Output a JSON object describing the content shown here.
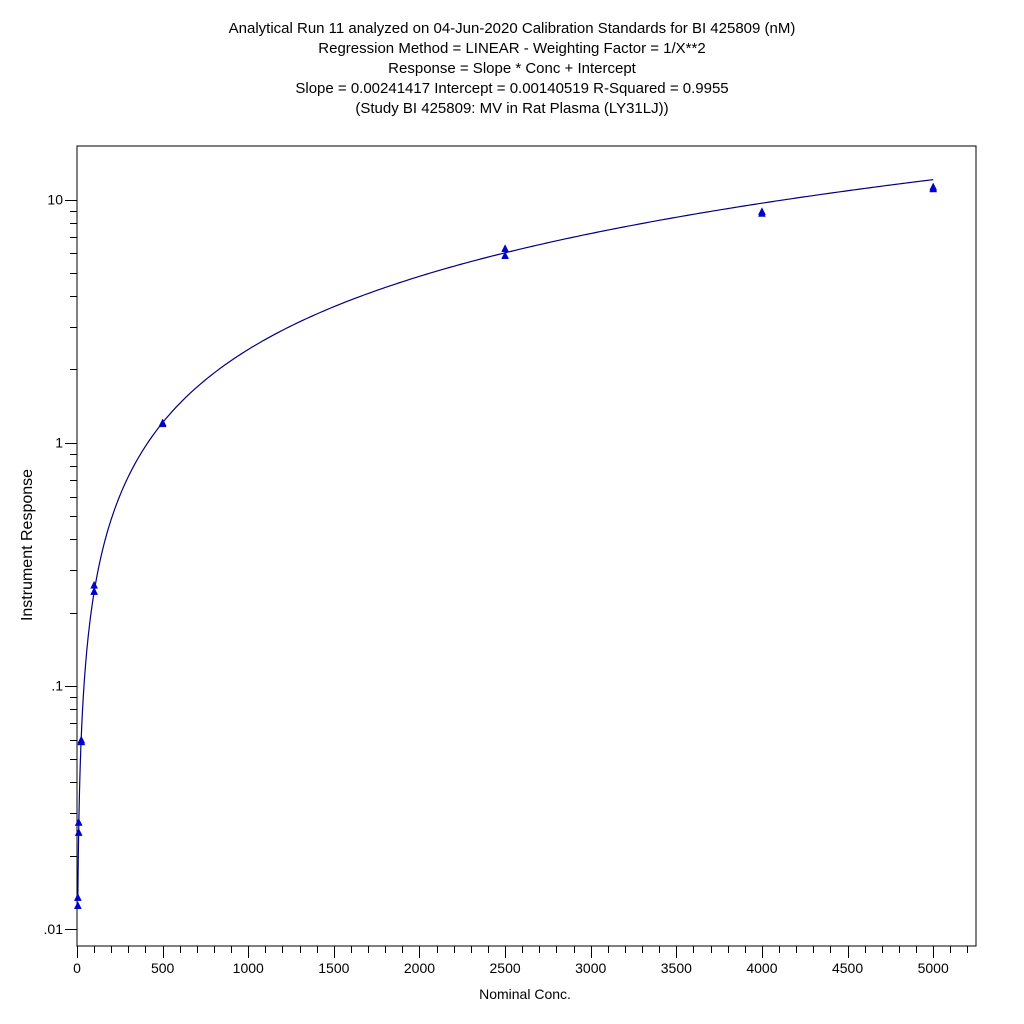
{
  "chart_data": {
    "type": "scatter",
    "title_lines": [
      "Analytical Run 11 analyzed on 04-Jun-2020 Calibration Standards for BI 425809 (nM)",
      "Regression Method = LINEAR - Weighting Factor = 1/X**2",
      "Response = Slope * Conc + Intercept",
      "Slope = 0.00241417 Intercept = 0.00140519 R-Squared = 0.9955",
      "(Study BI 425809: MV in Rat Plasma (LY31LJ))"
    ],
    "xlabel": "Nominal Conc.",
    "ylabel": "Instrument Response",
    "xlim": [
      0,
      5250
    ],
    "ylim": [
      0.0085,
      16.6
    ],
    "y_scale": "log",
    "x_ticks": [
      0,
      500,
      1000,
      1500,
      2000,
      2500,
      3000,
      3500,
      4000,
      4500,
      5000
    ],
    "x_tick_labels": [
      "0",
      "500",
      "1000",
      "1500",
      "2000",
      "2500",
      "3000",
      "3500",
      "4000",
      "4500",
      "5000"
    ],
    "y_ticks": [
      0.01,
      0.1,
      1,
      10
    ],
    "y_tick_labels": [
      ".01",
      ".1",
      "1",
      "10"
    ],
    "grid": false,
    "fit": {
      "slope": 0.00241417,
      "intercept": 0.00140519
    },
    "series": [
      {
        "marker": "triangle",
        "color": "#0000cc",
        "points": [
          {
            "x": 5,
            "y": 0.0125
          },
          {
            "x": 5,
            "y": 0.0135
          },
          {
            "x": 10,
            "y": 0.025
          },
          {
            "x": 10,
            "y": 0.0275
          },
          {
            "x": 25,
            "y": 0.059
          },
          {
            "x": 25,
            "y": 0.06
          },
          {
            "x": 100,
            "y": 0.245
          },
          {
            "x": 100,
            "y": 0.26
          },
          {
            "x": 500,
            "y": 1.2
          },
          {
            "x": 500,
            "y": 1.21
          },
          {
            "x": 2500,
            "y": 5.9
          },
          {
            "x": 2500,
            "y": 6.3
          },
          {
            "x": 4000,
            "y": 8.8
          },
          {
            "x": 4000,
            "y": 8.95
          },
          {
            "x": 5000,
            "y": 11.1
          },
          {
            "x": 5000,
            "y": 11.3
          }
        ]
      }
    ],
    "line_color": "#000080"
  }
}
